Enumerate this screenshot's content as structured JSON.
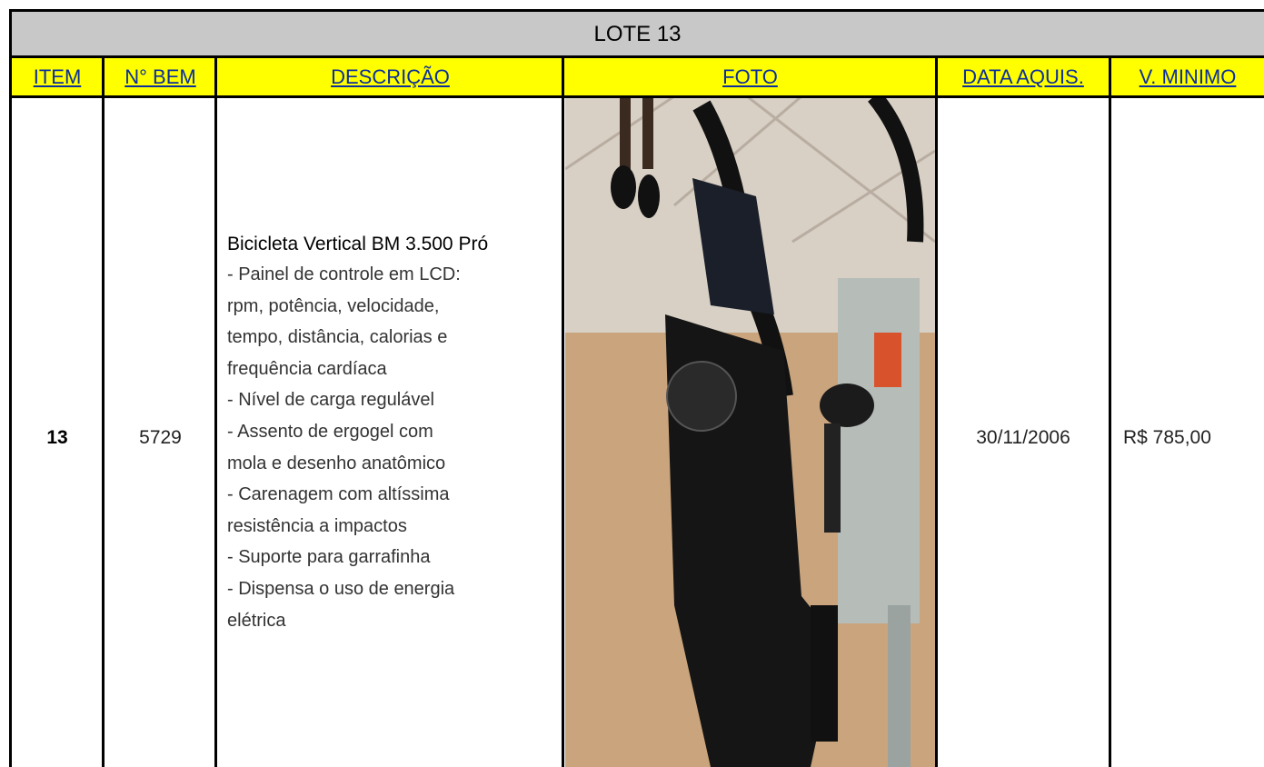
{
  "table": {
    "title": "LOTE 13",
    "headers": [
      "ITEM",
      "N° BEM",
      "DESCRIÇÃO",
      "FOTO",
      "DATA AQUIS.",
      "V. MINIMO"
    ],
    "rows": [
      {
        "item": "13",
        "bem": "5729",
        "description": {
          "heading": "Bicicleta Vertical BM 3.500 Pró",
          "lines": [
            "- Painel de controle em LCD:",
            "rpm, potência, velocidade,",
            "tempo, distância, calorias e",
            "frequência cardíaca",
            "- Nível de carga regulável",
            "- Assento de ergogel com",
            "mola e desenho anatômico",
            "- Carenagem com altíssima",
            "resistência a impactos",
            "- Suporte para garrafinha",
            "- Dispensa o uso de energia",
            "elétrica"
          ]
        },
        "date": "30/11/2006",
        "min_value": "R$ 785,00"
      }
    ]
  }
}
